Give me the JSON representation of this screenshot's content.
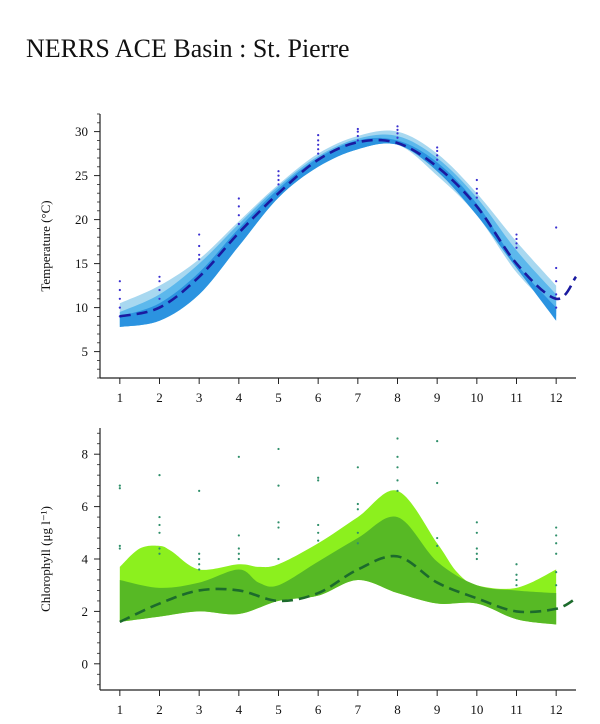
{
  "title": "NERRS ACE Basin : St. Pierre",
  "colors": {
    "temp_band_light": "#a8d8f0",
    "temp_band_mid": "#5cb8ec",
    "temp_band_dark": "#2b93e0",
    "temp_points": "#3a2fd0",
    "temp_line": "#1a1aa0",
    "chl_band_light": "#8cf01e",
    "chl_band_mid": "#57b925",
    "chl_band_dark": "#3f9a2a",
    "chl_points": "#2f8f6a",
    "chl_line": "#1c6b2c"
  },
  "chart_data": [
    {
      "type": "line",
      "ylabel": "Temperature (°C)",
      "xlabel": "",
      "xlim": [
        0.5,
        12.5
      ],
      "ylim": [
        2,
        32
      ],
      "x_ticks": [
        1,
        2,
        3,
        4,
        5,
        6,
        7,
        8,
        9,
        10,
        11,
        12
      ],
      "y_ticks": [
        5,
        10,
        15,
        20,
        25,
        30
      ],
      "grid": false,
      "x": [
        1,
        2,
        3,
        4,
        5,
        6,
        7,
        8,
        9,
        10,
        11,
        12
      ],
      "bands": [
        {
          "color_key": "temp_band_light",
          "upper": [
            10.5,
            12.5,
            15.5,
            19.8,
            24.0,
            27.5,
            29.5,
            30.0,
            27.5,
            23.0,
            17.5,
            12.5
          ],
          "lower": [
            8.0,
            8.5,
            11.5,
            17.0,
            22.5,
            26.0,
            28.0,
            28.5,
            25.0,
            20.5,
            14.0,
            9.5
          ]
        },
        {
          "color_key": "temp_band_mid",
          "upper": [
            9.5,
            11.5,
            15.0,
            19.5,
            23.8,
            27.2,
            29.2,
            29.5,
            27.0,
            22.5,
            16.5,
            11.5
          ],
          "lower": [
            7.8,
            8.5,
            11.5,
            17.0,
            22.5,
            26.0,
            28.0,
            28.5,
            25.5,
            20.5,
            14.5,
            9.0
          ]
        },
        {
          "color_key": "temp_band_dark",
          "upper": [
            9.0,
            10.5,
            14.0,
            19.0,
            23.5,
            27.0,
            29.0,
            29.0,
            26.5,
            21.8,
            15.0,
            10.0
          ],
          "lower": [
            7.8,
            8.5,
            11.5,
            17.0,
            22.5,
            26.0,
            28.0,
            28.5,
            25.5,
            20.5,
            14.5,
            8.5
          ]
        }
      ],
      "trend": {
        "x": [
          1,
          2,
          3,
          4,
          5,
          6,
          7,
          8,
          9,
          10,
          11,
          12,
          12.5
        ],
        "y": [
          9.0,
          10.0,
          13.5,
          18.5,
          23.0,
          26.8,
          28.8,
          28.7,
          26.0,
          21.5,
          15.0,
          11.0,
          13.5
        ]
      },
      "points": [
        {
          "x": 1,
          "values": [
            9.0,
            10.0,
            11.0,
            12.0,
            13.0
          ]
        },
        {
          "x": 2,
          "values": [
            11.0,
            12.0,
            13.0,
            13.5
          ]
        },
        {
          "x": 3,
          "values": [
            15.5,
            16.0,
            17.0,
            18.3
          ]
        },
        {
          "x": 4,
          "values": [
            19.5,
            20.5,
            21.5,
            22.4
          ]
        },
        {
          "x": 5,
          "values": [
            24.0,
            24.5,
            25.0,
            25.5
          ]
        },
        {
          "x": 6,
          "values": [
            27.5,
            28.0,
            28.5,
            29.0,
            29.6
          ]
        },
        {
          "x": 7,
          "values": [
            29.0,
            29.5,
            30.0,
            30.3
          ]
        },
        {
          "x": 8,
          "values": [
            29.3,
            29.8,
            30.2,
            30.6
          ]
        },
        {
          "x": 9,
          "values": [
            26.8,
            27.3,
            27.8,
            28.2
          ]
        },
        {
          "x": 10,
          "values": [
            22.5,
            23.0,
            23.5,
            24.5
          ]
        },
        {
          "x": 11,
          "values": [
            16.8,
            17.3,
            17.8,
            18.3
          ]
        },
        {
          "x": 12,
          "values": [
            10.0,
            11.5,
            13.0,
            14.5,
            19.1
          ]
        }
      ]
    },
    {
      "type": "line",
      "ylabel": "Chlorophyll (μg l⁻¹)",
      "xlabel": "",
      "xlim": [
        0.5,
        12.5
      ],
      "ylim": [
        -1,
        9
      ],
      "x_ticks": [
        1,
        2,
        3,
        4,
        5,
        6,
        7,
        8,
        9,
        10,
        11,
        12
      ],
      "y_ticks": [
        0,
        2,
        4,
        6,
        8
      ],
      "grid": false,
      "bands": [
        {
          "color_key": "chl_band_light",
          "upper_x": [
            1,
            1.5,
            2,
            2.3,
            3,
            4,
            4.5,
            5,
            6,
            7,
            8,
            9,
            9.5,
            10,
            11,
            12
          ],
          "upper_y": [
            3.7,
            4.4,
            4.5,
            4.3,
            3.6,
            3.8,
            3.7,
            3.8,
            4.6,
            5.6,
            6.6,
            4.6,
            3.5,
            3.0,
            2.9,
            3.6
          ],
          "lower_x": [
            1,
            2,
            3,
            4,
            5,
            6,
            7,
            8,
            9,
            10,
            11,
            12
          ],
          "lower_y": [
            1.6,
            1.8,
            2.0,
            1.9,
            2.4,
            2.6,
            3.2,
            2.7,
            2.3,
            2.3,
            1.7,
            1.5
          ]
        },
        {
          "color_key": "chl_band_mid",
          "upper_x": [
            1,
            2,
            3,
            4,
            4.5,
            5,
            6,
            7,
            8,
            9,
            10,
            11,
            12
          ],
          "upper_y": [
            3.2,
            2.9,
            3.1,
            3.6,
            3.1,
            3.0,
            3.9,
            4.8,
            5.6,
            3.9,
            3.0,
            2.8,
            2.7
          ],
          "lower_x": [
            1,
            2,
            3,
            4,
            5,
            6,
            7,
            8,
            9,
            10,
            11,
            12
          ],
          "lower_y": [
            1.6,
            1.8,
            2.0,
            1.9,
            2.4,
            2.6,
            3.2,
            2.7,
            2.3,
            2.3,
            1.7,
            1.5
          ]
        }
      ],
      "trend": {
        "x": [
          1,
          2,
          3,
          4,
          5,
          6,
          7,
          8,
          9,
          10,
          11,
          12,
          12.5
        ],
        "y": [
          1.6,
          2.3,
          2.8,
          2.8,
          2.4,
          2.7,
          3.6,
          4.1,
          3.1,
          2.5,
          2.0,
          2.1,
          2.5
        ]
      },
      "points": [
        {
          "x": 1,
          "values": [
            4.4,
            4.5,
            6.7,
            6.8
          ]
        },
        {
          "x": 2,
          "values": [
            4.2,
            4.4,
            5.0,
            5.3,
            5.6,
            7.2
          ]
        },
        {
          "x": 3,
          "values": [
            3.6,
            3.8,
            4.0,
            4.2,
            6.6
          ]
        },
        {
          "x": 4,
          "values": [
            4.0,
            4.2,
            4.4,
            4.9,
            7.9
          ]
        },
        {
          "x": 5,
          "values": [
            4.0,
            5.2,
            5.4,
            6.8,
            8.2
          ]
        },
        {
          "x": 6,
          "values": [
            4.7,
            5.0,
            5.3,
            7.0,
            7.1
          ]
        },
        {
          "x": 7,
          "values": [
            4.6,
            5.0,
            5.9,
            6.1,
            7.5
          ]
        },
        {
          "x": 8,
          "values": [
            6.6,
            7.0,
            7.5,
            7.9,
            8.6
          ]
        },
        {
          "x": 9,
          "values": [
            4.5,
            4.8,
            6.9,
            8.5
          ]
        },
        {
          "x": 10,
          "values": [
            4.0,
            4.2,
            4.4,
            5.0,
            5.4
          ]
        },
        {
          "x": 11,
          "values": [
            3.0,
            3.2,
            3.4,
            3.8
          ]
        },
        {
          "x": 12,
          "values": [
            3.0,
            3.5,
            4.2,
            4.6,
            4.9,
            5.2
          ]
        }
      ]
    }
  ]
}
